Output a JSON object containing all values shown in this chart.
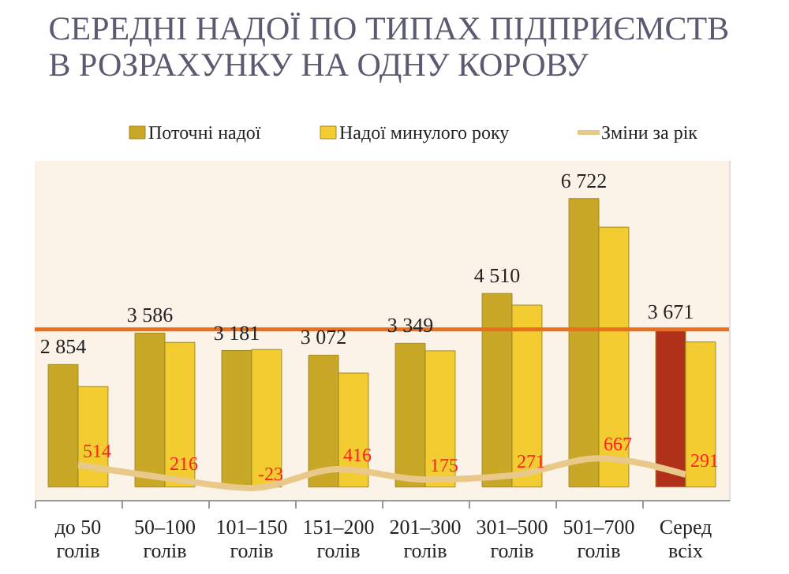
{
  "chart_data": {
    "type": "bar",
    "title": [
      "СЕРЕДНІ НАДОЇ ПО ТИПАХ ПІДПРИЄМСТВ",
      "В РОЗРАХУНКУ НА ОДНУ КОРОВУ"
    ],
    "categories": [
      "до 50\nголів",
      "50–100\nголів",
      "101–150\nголів",
      "151–200\nголів",
      "201–300\nголів",
      "301–500\nголів",
      "501–700\nголів",
      "Серед\nвсіх"
    ],
    "series": [
      {
        "name": "Поточні надої",
        "color": "#c8a826",
        "colors": [
          "#c8a826",
          "#c8a826",
          "#c8a826",
          "#c8a826",
          "#c8a826",
          "#c8a826",
          "#c8a826",
          "#b0301a"
        ],
        "values": [
          2854,
          3586,
          3181,
          3072,
          3349,
          4510,
          6722,
          3671
        ],
        "value_labels": [
          "2 854",
          "3 586",
          "3 181",
          "3 072",
          "3 349",
          "4 510",
          "6 722",
          "3 671"
        ]
      },
      {
        "name": "Надої минулого року",
        "color": "#f2cc30",
        "values": [
          2340,
          3370,
          3204,
          2656,
          3174,
          4239,
          6055,
          3380
        ]
      },
      {
        "name": "Зміни за рік",
        "type": "line",
        "color": "#e8c98a",
        "values": [
          514,
          216,
          -23,
          416,
          175,
          271,
          667,
          291
        ],
        "value_labels": [
          "514",
          "216",
          "-23",
          "416",
          "175",
          "271",
          "667",
          "291"
        ]
      }
    ],
    "ylim": [
      -300,
      7600
    ],
    "tick_labels": "x",
    "legend": "top",
    "ref_lines": [
      {
        "axis": "y",
        "value": 3671,
        "color": "#e8701e"
      }
    ]
  }
}
